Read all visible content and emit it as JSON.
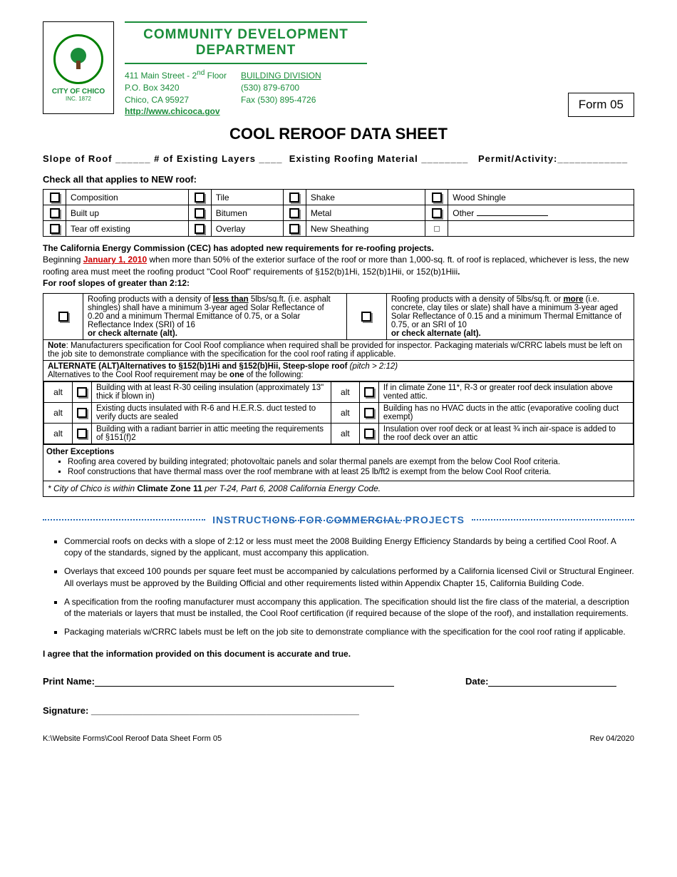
{
  "header": {
    "logo_city": "CITY OF CHICO",
    "logo_inc": "INC. 1872",
    "dept_line1": "COMMUNITY DEVELOPMENT",
    "dept_line2": "DEPARTMENT",
    "address_l1": "411 Main Street - 2",
    "address_l1_sup": "nd",
    "address_l1_after": " Floor",
    "address_l2": "P.O. Box 3420",
    "address_l3": "Chico, CA 95927",
    "division": "BUILDING DIVISION",
    "phone": "(530) 879-6700",
    "fax": "Fax (530) 895-4726",
    "website": "http://www.chicoca.gov"
  },
  "form_badge": "Form 05",
  "title": "COOL REROOF DATA SHEET",
  "field_line": {
    "slope": "Slope  of  Roof ______",
    "layers": "#  of  Existing  Layers ____",
    "material": "Existing  Roofing  Material ________",
    "permit": "Permit/Activity:____________"
  },
  "check_label": "Check all that applies to NEW roof:",
  "roof_options": [
    [
      "Composition",
      "Tile",
      "Shake",
      "Wood Shingle"
    ],
    [
      "Built up",
      "Bitumen",
      "Metal",
      "Other"
    ],
    [
      "Tear off existing",
      "Overlay",
      "New Sheathing",
      ""
    ]
  ],
  "cec_heading": "The California Energy Commission (CEC) has adopted new requirements for re-roofing projects.",
  "cec_body_prefix": "Beginning ",
  "cec_date": "January 1, 2010",
  "cec_body_rest": " when more than 50% of the exterior surface of the roof or more than 1,000-sq. ft. of roof is replaced, whichever is less, the new roofing area must meet the roofing product \"Cool Roof\" requirements of §152(b)1Hi, 152(b)1Hii, or 152(b)1Hiii",
  "slope_label": "For roof slopes of greater than 2:12:",
  "density_less_pre": "Roofing products with a density of ",
  "density_less_bold": "less than",
  "density_less_post": " 5lbs/sq.ft. (i.e. asphalt shingles) shall have a minimum 3-year aged Solar Reflectance of 0.20 and a minimum Thermal Emittance of 0.75, or a Solar Reflectance Index (SRI) of 16",
  "density_more_pre": "Roofing products with a density of 5lbs/sq.ft. or ",
  "density_more_bold": "more",
  "density_more_post": " (i.e. concrete, clay tiles or slate) shall have a minimum 3-year aged Solar Reflectance of 0.15 and a minimum Thermal Emittance of 0.75, or an SRI of 10",
  "or_check_alt": "or check alternate (alt).",
  "note_text": ": Manufacturers specification for Cool Roof compliance when required shall be provided for inspector. Packaging materials w/CRRC labels must be left on the job site to demonstrate compliance with the specification for the cool roof rating if applicable.",
  "note_label": "Note",
  "alt_heading_l1_pre": "ALTERNATE (ALT)Alternatives to §152(b)1Hi and §152(b)Hii, Steep-slope roof ",
  "alt_heading_italic": "(pitch > 2:12)",
  "alt_heading_l2_pre": "Alternatives to the Cool Roof requirement may be ",
  "alt_heading_bold": "one",
  "alt_heading_l2_post": " of the following:",
  "alt_rows": [
    {
      "l": "Building with at least R-30 ceiling insulation (approximately 13\" thick if blown in)",
      "r": "If in climate Zone 11*, R-3 or greater roof deck insulation above vented attic."
    },
    {
      "l": "Existing ducts insulated with R-6 and H.E.R.S. duct tested to verify ducts are sealed",
      "r": "Building has no HVAC ducts in the attic (evaporative cooling duct exempt)"
    },
    {
      "l": "Building with a radiant barrier in attic meeting the requirements of §151(f)2",
      "r": "Insulation over roof deck or at least ¾ inch air-space is added to the roof deck over an attic"
    }
  ],
  "other_exc_label": "Other Exceptions",
  "other_exc_1": "Roofing area covered by building integrated; photovoltaic panels and solar thermal panels are exempt from the below Cool Roof criteria.",
  "other_exc_2": "Roof constructions that have thermal mass over the roof membrane with at least 25 lb/ft2 is exempt from the below Cool Roof criteria.",
  "climate_note_pre": "* City of Chico is within ",
  "climate_note_bold": "Climate Zone 11",
  "climate_note_post": " per T-24, Part 6, 2008 California Energy Code.",
  "instructions_title": "INSTRUCTIONS  FOR  COMMERCIAL PROJECTS",
  "commercial_items": [
    "Commercial roofs on decks with a slope of 2:12 or less must meet the 2008 Building Energy Efficiency Standards by being a certified Cool Roof. A copy of the standards, signed by the applicant, must accompany this application.",
    "Overlays that exceed 100 pounds per square feet must be accompanied by calculations performed by a California licensed Civil or Structural Engineer. All overlays must be approved by the Building Official and other requirements listed within Appendix Chapter 15, California Building Code.",
    "A specification from the roofing manufacturer must accompany this application. The specification should list the fire class of the material, a description of the materials or layers that must be installed, the Cool Roof certification (if required because of the slope of the roof), and installation requirements.",
    "Packaging materials w/CRRC labels must be left on the job site to demonstrate compliance with the specification for the cool roof rating if applicable."
  ],
  "agree_text": "I agree that the information provided on this document is accurate and true.",
  "print_name_label": "Print Name:",
  "date_label": "Date:",
  "signature_label": "Signature: ____________________________________________________",
  "footer_left": "K:\\Website Forms\\Cool Reroof Data Sheet Form 05",
  "footer_right": "Rev 04/2020"
}
